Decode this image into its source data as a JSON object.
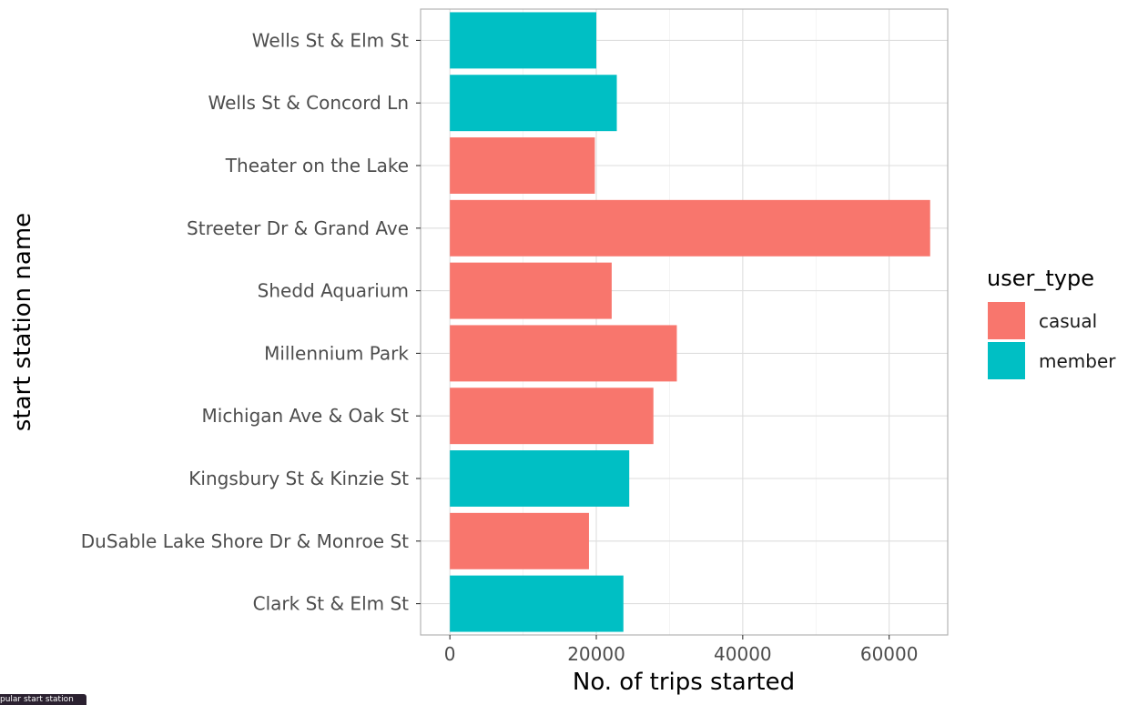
{
  "chart_data": {
    "type": "bar",
    "orientation": "horizontal",
    "xlabel": "No. of trips started",
    "ylabel": "start station name",
    "xlim": [
      -4000,
      68000
    ],
    "xticks": [
      0,
      20000,
      40000,
      60000
    ],
    "grid": true,
    "legend": {
      "title": "user_type",
      "position": "right",
      "entries": [
        {
          "name": "casual",
          "color": "#F8766D"
        },
        {
          "name": "member",
          "color": "#00BFC4"
        }
      ]
    },
    "bars": [
      {
        "category": "Wells St & Elm St",
        "value": 20000,
        "user_type": "member"
      },
      {
        "category": "Wells St & Concord Ln",
        "value": 22800,
        "user_type": "member"
      },
      {
        "category": "Theater on the Lake",
        "value": 19800,
        "user_type": "casual"
      },
      {
        "category": "Streeter Dr & Grand Ave",
        "value": 65600,
        "user_type": "casual"
      },
      {
        "category": "Shedd Aquarium",
        "value": 22100,
        "user_type": "casual"
      },
      {
        "category": "Millennium Park",
        "value": 31000,
        "user_type": "casual"
      },
      {
        "category": "Michigan Ave & Oak St",
        "value": 27800,
        "user_type": "casual"
      },
      {
        "category": "Kingsbury St & Kinzie St",
        "value": 24500,
        "user_type": "member"
      },
      {
        "category": "DuSable Lake Shore Dr & Monroe St",
        "value": 19000,
        "user_type": "casual"
      },
      {
        "category": "Clark St & Elm St",
        "value": 23700,
        "user_type": "member"
      }
    ]
  },
  "tooltip": {
    "label": "pular start station"
  }
}
